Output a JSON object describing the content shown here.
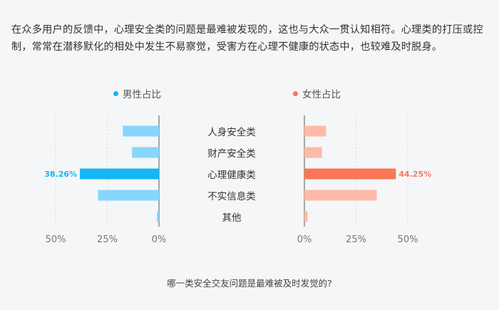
{
  "intro_text": "在众多用户的反馈中，心理安全类的问题是最难被发现的，这也与大众一贯认知相符。心理类的打压或控制，常常在潜移默化的相处中发生不易察觉，受害方在心理不健康的状态中，也较难及时脱身。",
  "chart_data": {
    "type": "bar",
    "layout": "back-to-back horizontal bar",
    "title": "",
    "caption": "哪一类安全交友问题是最难被及时发觉的?",
    "categories": [
      "人身安全类",
      "财产安全类",
      "心理健康类",
      "不实信息类",
      "其他"
    ],
    "series": [
      {
        "name": "男性占比",
        "values": [
          17.5,
          13.0,
          38.26,
          29.5,
          1.0
        ],
        "value_labels": [
          "",
          "",
          "38.26%",
          "",
          ""
        ],
        "color": "#87d6fc",
        "highlight_color": "#14b6f5"
      },
      {
        "name": "女性占比",
        "values": [
          10.5,
          8.5,
          44.25,
          35.0,
          1.5
        ],
        "value_labels": [
          "",
          "",
          "44.25%",
          "",
          ""
        ],
        "color": "#fdbaa6",
        "highlight_color": "#fb7656"
      }
    ],
    "highlight_index": 2,
    "xlim": [
      0,
      50
    ],
    "x_ticks_left": [
      "50%",
      "25%",
      "0%"
    ],
    "x_ticks_right": [
      "0%",
      "25%",
      "50%"
    ],
    "grid": true
  }
}
